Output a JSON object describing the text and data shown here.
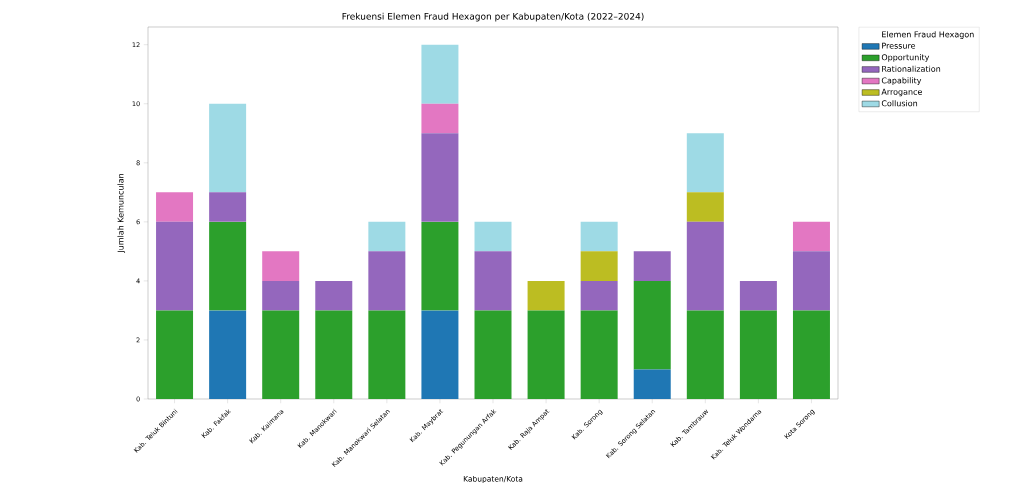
{
  "chart_data": {
    "type": "bar",
    "stacked": true,
    "title": "Frekuensi Elemen Fraud Hexagon per Kabupaten/Kota (2022–2024)",
    "xlabel": "Kabupaten/Kota",
    "ylabel": "Jumlah Kemunculan",
    "legend_title": "Elemen Fraud Hexagon",
    "legend": "top right",
    "grid": false,
    "categories": [
      "Kab. Teluk Bintuni",
      "Kab. Fakfak",
      "Kab. Kaimana",
      "Kab. Manokwari",
      "Kab. Manokwari Selatan",
      "Kab. Maybrat",
      "Kab. Pegunungan Arfak",
      "Kab. Raja Ampat",
      "Kab. Sorong",
      "Kab. Sorong Selatan",
      "Kab. Tambrauw",
      "Kab. Teluk Wondama",
      "Kota Sorong"
    ],
    "ylim": [
      0,
      12.6
    ],
    "yticks": [
      0,
      2,
      4,
      6,
      8,
      10,
      12
    ],
    "series": [
      {
        "name": "Pressure",
        "color": "#1f77b4",
        "values": [
          0,
          3,
          0,
          0,
          0,
          3,
          0,
          0,
          0,
          1,
          0,
          0,
          0
        ]
      },
      {
        "name": "Opportunity",
        "color": "#2ca02c",
        "values": [
          3,
          3,
          3,
          3,
          3,
          3,
          3,
          3,
          3,
          3,
          3,
          3,
          3
        ]
      },
      {
        "name": "Rationalization",
        "color": "#9467bd",
        "values": [
          3,
          1,
          1,
          1,
          2,
          3,
          2,
          0,
          1,
          1,
          3,
          1,
          2
        ]
      },
      {
        "name": "Capability",
        "color": "#e377c2",
        "values": [
          1,
          0,
          1,
          0,
          0,
          1,
          0,
          0,
          0,
          0,
          0,
          0,
          1
        ]
      },
      {
        "name": "Arrogance",
        "color": "#bcbd22",
        "values": [
          0,
          0,
          0,
          0,
          0,
          0,
          0,
          1,
          1,
          0,
          1,
          0,
          0
        ]
      },
      {
        "name": "Collusion",
        "color": "#9edae5",
        "values": [
          0,
          3,
          0,
          0,
          1,
          2,
          1,
          0,
          1,
          0,
          2,
          0,
          0
        ]
      }
    ]
  }
}
